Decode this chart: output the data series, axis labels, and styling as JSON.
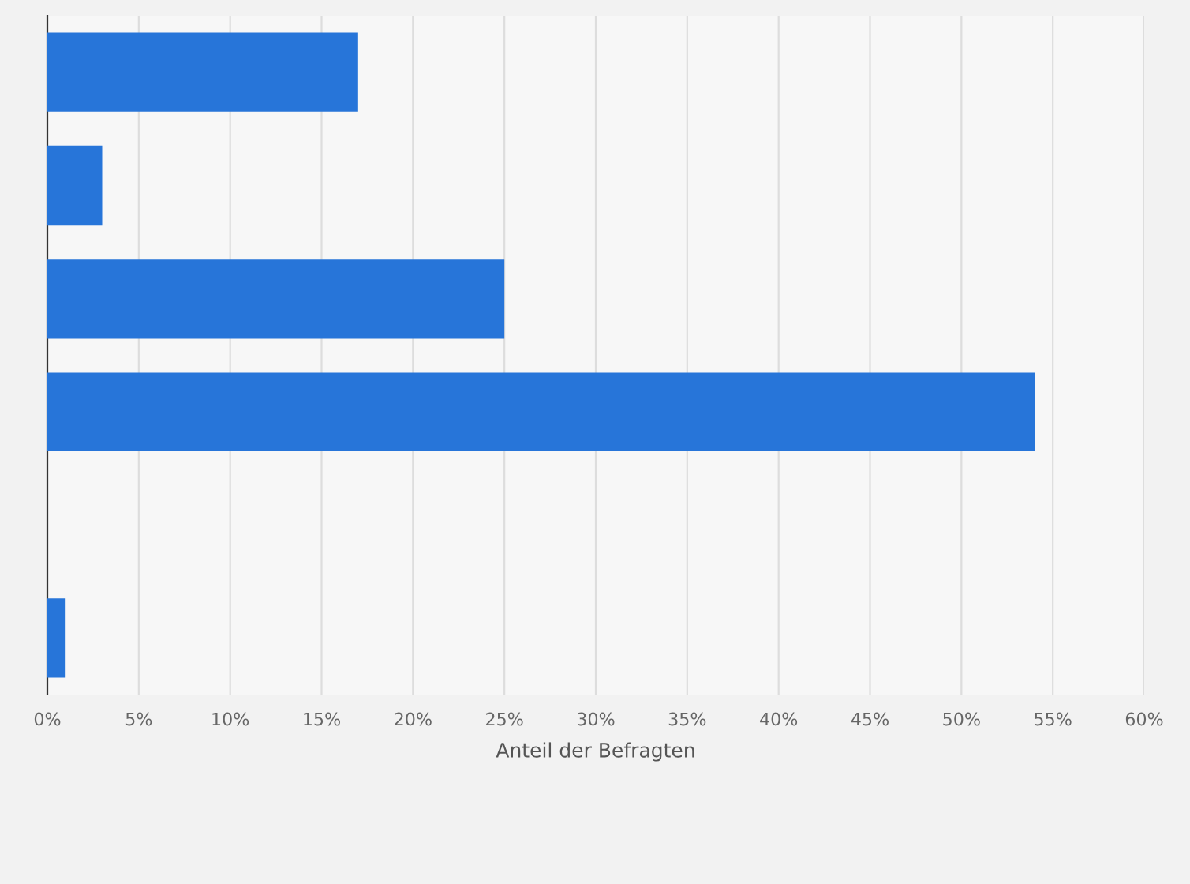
{
  "chart_data": {
    "type": "bar",
    "orientation": "horizontal",
    "xlabel": "Anteil der Befragten",
    "categories": [
      null,
      null,
      null,
      null,
      null,
      null
    ],
    "values": [
      17,
      3,
      25,
      54,
      0,
      1
    ],
    "color": "#2775d9",
    "xlim": [
      0,
      60
    ],
    "xticks": [
      {
        "value": 0,
        "label": "0%"
      },
      {
        "value": 5,
        "label": "5%"
      },
      {
        "value": 10,
        "label": "10%"
      },
      {
        "value": 15,
        "label": "15%"
      },
      {
        "value": 20,
        "label": "20%"
      },
      {
        "value": 25,
        "label": "25%"
      },
      {
        "value": 30,
        "label": "30%"
      },
      {
        "value": 35,
        "label": "35%"
      },
      {
        "value": 40,
        "label": "40%"
      },
      {
        "value": 45,
        "label": "45%"
      },
      {
        "value": 50,
        "label": "50%"
      },
      {
        "value": 55,
        "label": "55%"
      },
      {
        "value": 60,
        "label": "60%"
      }
    ],
    "grid": "x"
  }
}
